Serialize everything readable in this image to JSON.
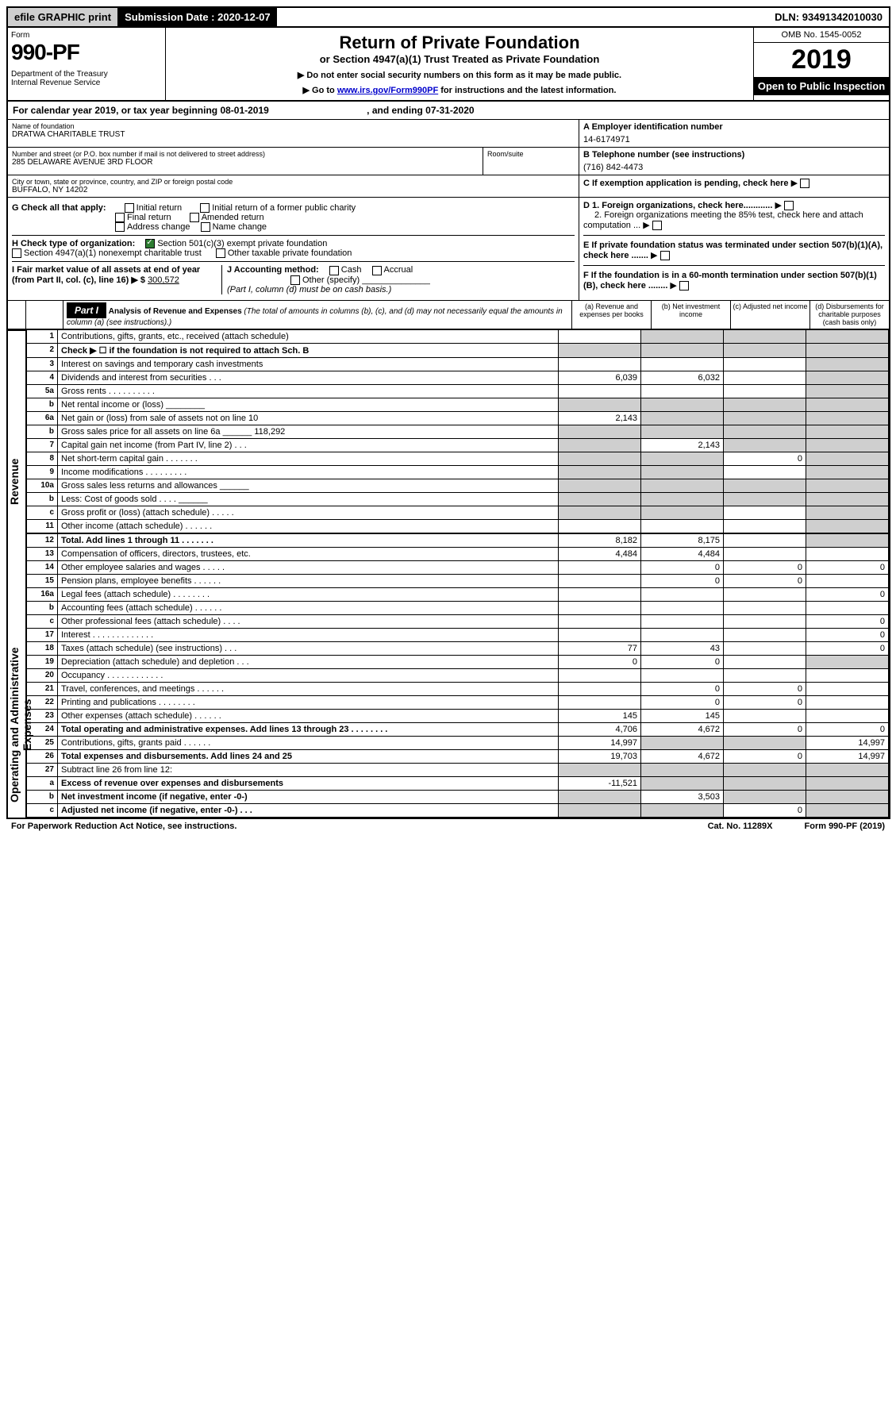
{
  "topbar": {
    "efile": "efile GRAPHIC print",
    "subdate_label": "Submission Date :",
    "subdate": "2020-12-07",
    "dln_label": "DLN:",
    "dln": "93491342010030"
  },
  "header": {
    "form_label": "Form",
    "form_num": "990-PF",
    "dept": "Department of the Treasury\nInternal Revenue Service",
    "title": "Return of Private Foundation",
    "subtitle": "or Section 4947(a)(1) Trust Treated as Private Foundation",
    "note1": "▶ Do not enter social security numbers on this form as it may be made public.",
    "note2_pre": "▶ Go to ",
    "note2_link": "www.irs.gov/Form990PF",
    "note2_post": " for instructions and the latest information.",
    "omb": "OMB No. 1545-0052",
    "year": "2019",
    "open": "Open to Public Inspection"
  },
  "calyear": {
    "text": "For calendar year 2019, or tax year beginning 08-01-2019",
    "ending": ", and ending 07-31-2020"
  },
  "info": {
    "name_label": "Name of foundation",
    "name": "DRATWA CHARITABLE TRUST",
    "addr_label": "Number and street (or P.O. box number if mail is not delivered to street address)",
    "addr": "285 DELAWARE AVENUE 3RD FLOOR",
    "room_label": "Room/suite",
    "city_label": "City or town, state or province, country, and ZIP or foreign postal code",
    "city": "BUFFALO, NY  14202",
    "ein_label": "A Employer identification number",
    "ein": "14-6174971",
    "tel_label": "B Telephone number (see instructions)",
    "tel": "(716) 842-4473",
    "c": "C If exemption application is pending, check here",
    "d1": "D 1. Foreign organizations, check here............",
    "d2": "2. Foreign organizations meeting the 85% test, check here and attach computation ...",
    "e": "E If private foundation status was terminated under section 507(b)(1)(A), check here .......",
    "f": "F If the foundation is in a 60-month termination under section 507(b)(1)(B), check here ........",
    "g_label": "G Check all that apply:",
    "g_opts": [
      "Initial return",
      "Initial return of a former public charity",
      "Final return",
      "Amended return",
      "Address change",
      "Name change"
    ],
    "h_label": "H Check type of organization:",
    "h_opt1": "Section 501(c)(3) exempt private foundation",
    "h_opt2": "Section 4947(a)(1) nonexempt charitable trust",
    "h_opt3": "Other taxable private foundation",
    "i_label": "I Fair market value of all assets at end of year (from Part II, col. (c), line 16) ▶ $",
    "i_value": "300,572",
    "j_label": "J Accounting method:",
    "j_opts": [
      "Cash",
      "Accrual"
    ],
    "j_other": "Other (specify)",
    "j_note": "(Part I, column (d) must be on cash basis.)"
  },
  "part1": {
    "label": "Part I",
    "title": "Analysis of Revenue and Expenses",
    "note": "(The total of amounts in columns (b), (c), and (d) may not necessarily equal the amounts in column (a) (see instructions).)",
    "cols": {
      "a": "(a) Revenue and expenses per books",
      "b": "(b) Net investment income",
      "c": "(c) Adjusted net income",
      "d": "(d) Disbursements for charitable purposes (cash basis only)"
    },
    "side_rev": "Revenue",
    "side_exp": "Operating and Administrative Expenses"
  },
  "rows": [
    {
      "n": "1",
      "t": "Contributions, gifts, grants, etc., received (attach schedule)",
      "a": "",
      "b": "shade",
      "c": "shade",
      "d": "shade"
    },
    {
      "n": "2",
      "t": "Check ▶ ☐ if the foundation is not required to attach Sch. B",
      "a": "shade",
      "b": "shade",
      "c": "shade",
      "d": "shade",
      "nottxt": true,
      "bold": [
        "not"
      ]
    },
    {
      "n": "3",
      "t": "Interest on savings and temporary cash investments",
      "a": "",
      "b": "",
      "c": "",
      "d": "shade"
    },
    {
      "n": "4",
      "t": "Dividends and interest from securities   .   .   .",
      "a": "6,039",
      "b": "6,032",
      "c": "",
      "d": "shade"
    },
    {
      "n": "5a",
      "t": "Gross rents   .   .   .   .   .   .   .   .   .   .",
      "a": "",
      "b": "",
      "c": "",
      "d": "shade"
    },
    {
      "n": "b",
      "t": "Net rental income or (loss) ________",
      "a": "shade",
      "b": "shade",
      "c": "shade",
      "d": "shade"
    },
    {
      "n": "6a",
      "t": "Net gain or (loss) from sale of assets not on line 10",
      "a": "2,143",
      "b": "shade",
      "c": "shade",
      "d": "shade"
    },
    {
      "n": "b",
      "t": "Gross sales price for all assets on line 6a ______ 118,292",
      "a": "shade",
      "b": "shade",
      "c": "shade",
      "d": "shade"
    },
    {
      "n": "7",
      "t": "Capital gain net income (from Part IV, line 2)   .   .   .",
      "a": "shade",
      "b": "2,143",
      "c": "shade",
      "d": "shade"
    },
    {
      "n": "8",
      "t": "Net short-term capital gain   .   .   .   .   .   .   .",
      "a": "shade",
      "b": "shade",
      "c": "0",
      "d": "shade"
    },
    {
      "n": "9",
      "t": "Income modifications   .   .   .   .   .   .   .   .   .",
      "a": "shade",
      "b": "shade",
      "c": "",
      "d": "shade"
    },
    {
      "n": "10a",
      "t": "Gross sales less returns and allowances ______",
      "a": "shade",
      "b": "shade",
      "c": "shade",
      "d": "shade"
    },
    {
      "n": "b",
      "t": "Less: Cost of goods sold   .   .   .   . ______",
      "a": "shade",
      "b": "shade",
      "c": "shade",
      "d": "shade"
    },
    {
      "n": "c",
      "t": "Gross profit or (loss) (attach schedule)   .   .   .   .   .",
      "a": "shade",
      "b": "shade",
      "c": "",
      "d": "shade"
    },
    {
      "n": "11",
      "t": "Other income (attach schedule)   .   .   .   .   .   .",
      "a": "",
      "b": "",
      "c": "",
      "d": "shade"
    },
    {
      "n": "12",
      "t": "Total. Add lines 1 through 11   .   .   .   .   .   .   .",
      "a": "8,182",
      "b": "8,175",
      "c": "",
      "d": "shade",
      "bold": true
    },
    {
      "n": "13",
      "t": "Compensation of officers, directors, trustees, etc.",
      "a": "4,484",
      "b": "4,484",
      "c": "",
      "d": ""
    },
    {
      "n": "14",
      "t": "Other employee salaries and wages   .   .   .   .   .",
      "a": "",
      "b": "0",
      "c": "0",
      "d": "0"
    },
    {
      "n": "15",
      "t": "Pension plans, employee benefits   .   .   .   .   .   .",
      "a": "",
      "b": "0",
      "c": "0",
      "d": ""
    },
    {
      "n": "16a",
      "t": "Legal fees (attach schedule)   .   .   .   .   .   .   .   .",
      "a": "",
      "b": "",
      "c": "",
      "d": "0"
    },
    {
      "n": "b",
      "t": "Accounting fees (attach schedule)   .   .   .   .   .   .",
      "a": "",
      "b": "",
      "c": "",
      "d": ""
    },
    {
      "n": "c",
      "t": "Other professional fees (attach schedule)   .   .   .   .",
      "a": "",
      "b": "",
      "c": "",
      "d": "0"
    },
    {
      "n": "17",
      "t": "Interest   .   .   .   .   .   .   .   .   .   .   .   .   .",
      "a": "",
      "b": "",
      "c": "",
      "d": "0"
    },
    {
      "n": "18",
      "t": "Taxes (attach schedule) (see instructions)   .   .   .",
      "a": "77",
      "b": "43",
      "c": "",
      "d": "0"
    },
    {
      "n": "19",
      "t": "Depreciation (attach schedule) and depletion   .   .   .",
      "a": "0",
      "b": "0",
      "c": "",
      "d": "shade"
    },
    {
      "n": "20",
      "t": "Occupancy   .   .   .   .   .   .   .   .   .   .   .   .",
      "a": "",
      "b": "",
      "c": "",
      "d": ""
    },
    {
      "n": "21",
      "t": "Travel, conferences, and meetings   .   .   .   .   .   .",
      "a": "",
      "b": "0",
      "c": "0",
      "d": ""
    },
    {
      "n": "22",
      "t": "Printing and publications   .   .   .   .   .   .   .   .",
      "a": "",
      "b": "0",
      "c": "0",
      "d": ""
    },
    {
      "n": "23",
      "t": "Other expenses (attach schedule)   .   .   .   .   .   .",
      "a": "145",
      "b": "145",
      "c": "",
      "d": ""
    },
    {
      "n": "24",
      "t": "Total operating and administrative expenses. Add lines 13 through 23   .   .   .   .   .   .   .   .",
      "a": "4,706",
      "b": "4,672",
      "c": "0",
      "d": "0",
      "bold": true
    },
    {
      "n": "25",
      "t": "Contributions, gifts, grants paid   .   .   .   .   .   .",
      "a": "14,997",
      "b": "shade",
      "c": "shade",
      "d": "14,997"
    },
    {
      "n": "26",
      "t": "Total expenses and disbursements. Add lines 24 and 25",
      "a": "19,703",
      "b": "4,672",
      "c": "0",
      "d": "14,997",
      "bold": true
    },
    {
      "n": "27",
      "t": "Subtract line 26 from line 12:",
      "a": "shade",
      "b": "shade",
      "c": "shade",
      "d": "shade"
    },
    {
      "n": "a",
      "t": "Excess of revenue over expenses and disbursements",
      "a": "-11,521",
      "b": "shade",
      "c": "shade",
      "d": "shade",
      "bold": true
    },
    {
      "n": "b",
      "t": "Net investment income (if negative, enter -0-)",
      "a": "shade",
      "b": "3,503",
      "c": "shade",
      "d": "shade",
      "bold": true
    },
    {
      "n": "c",
      "t": "Adjusted net income (if negative, enter -0-)   .   .   .",
      "a": "shade",
      "b": "shade",
      "c": "0",
      "d": "shade",
      "bold": true
    }
  ],
  "footer": {
    "left": "For Paperwork Reduction Act Notice, see instructions.",
    "mid": "Cat. No. 11289X",
    "right": "Form 990-PF (2019)"
  }
}
